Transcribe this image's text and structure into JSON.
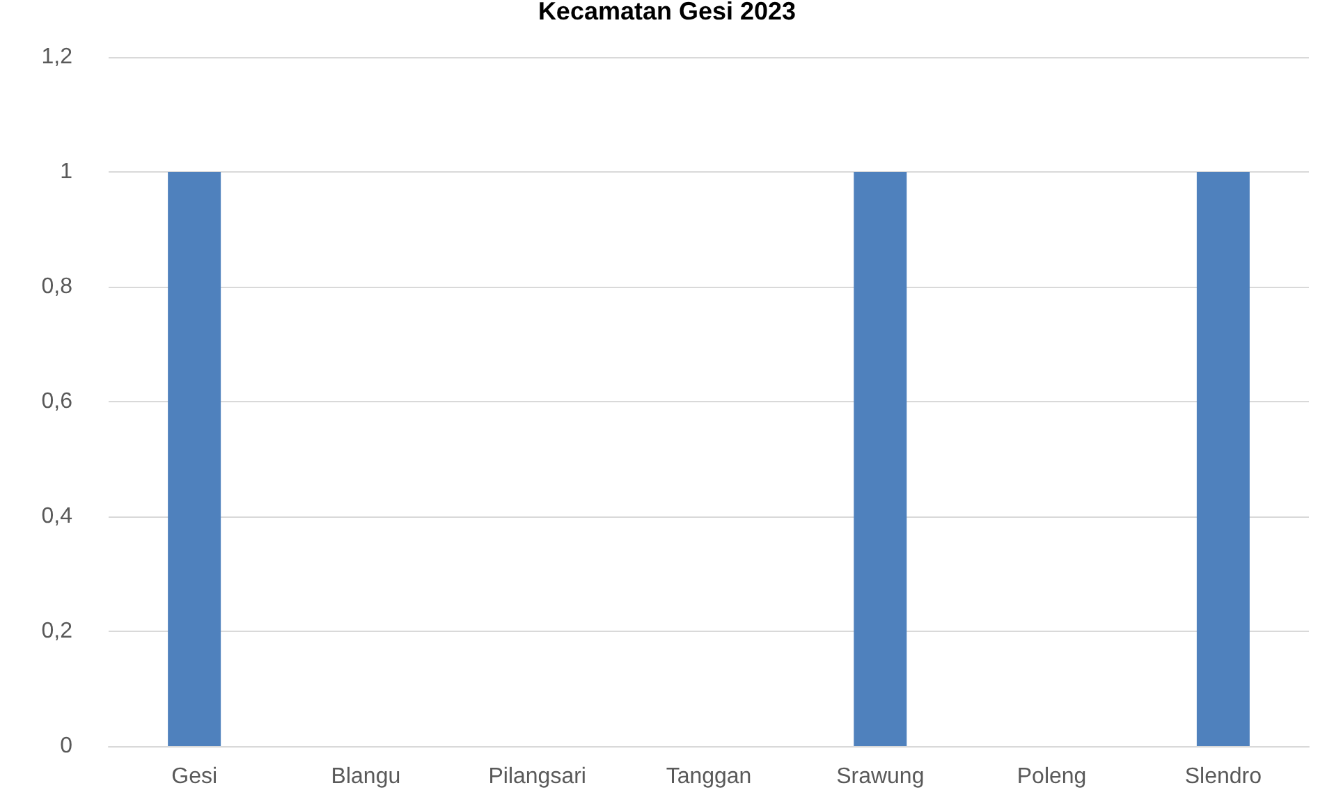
{
  "chart_data": {
    "type": "bar",
    "title": "Kecamatan Gesi 2023",
    "categories": [
      "Gesi",
      "Blangu",
      "Pilangsari",
      "Tanggan",
      "Srawung",
      "Poleng",
      "Slendro"
    ],
    "values": [
      1,
      0,
      0,
      0,
      1,
      0,
      1
    ],
    "color": "#4f81bd",
    "ylim": [
      0,
      1.2
    ],
    "yticks": [
      0,
      {
        "value": 0.2,
        "label": "0,2"
      },
      {
        "value": 0.4,
        "label": "0,4"
      },
      {
        "value": 0.6,
        "label": "0,6"
      },
      {
        "value": 0.8,
        "label": "0,8"
      },
      1,
      {
        "value": 1.2,
        "label": "1,2"
      }
    ],
    "grid": "y"
  }
}
